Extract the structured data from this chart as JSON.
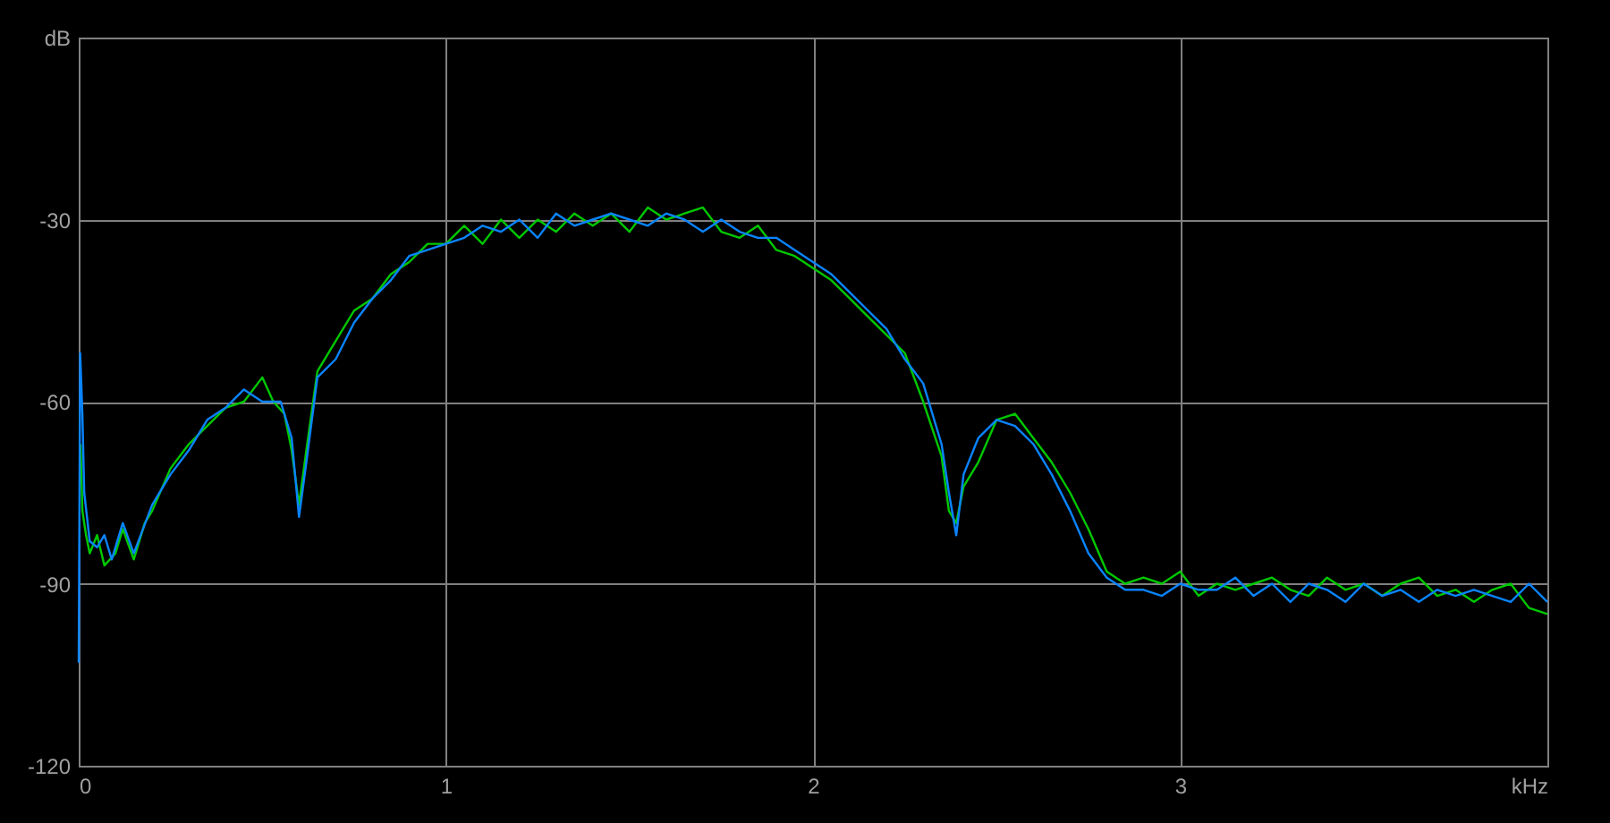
{
  "chart_data": {
    "type": "line",
    "xlim": [
      0,
      4
    ],
    "ylim": [
      -120,
      0
    ],
    "xticks": [
      0,
      1,
      2,
      3,
      {
        "value": 4,
        "label": "kHz"
      }
    ],
    "yticks": [
      {
        "value": 0,
        "label": "dB"
      },
      -30,
      -60,
      -90,
      -120
    ],
    "grid": true,
    "marker": "none",
    "line_style": "solid",
    "series": [
      {
        "color": "#00c800",
        "x": [
          0.005,
          0.01,
          0.02,
          0.03,
          0.05,
          0.07,
          0.1,
          0.12,
          0.15,
          0.18,
          0.2,
          0.25,
          0.3,
          0.35,
          0.4,
          0.45,
          0.5,
          0.53,
          0.56,
          0.58,
          0.6,
          0.62,
          0.65,
          0.7,
          0.75,
          0.8,
          0.85,
          0.9,
          0.95,
          1.0,
          1.05,
          1.1,
          1.15,
          1.2,
          1.25,
          1.3,
          1.35,
          1.4,
          1.45,
          1.5,
          1.55,
          1.6,
          1.65,
          1.7,
          1.75,
          1.8,
          1.85,
          1.9,
          1.95,
          2.0,
          2.05,
          2.1,
          2.15,
          2.2,
          2.25,
          2.3,
          2.35,
          2.37,
          2.39,
          2.41,
          2.45,
          2.5,
          2.55,
          2.6,
          2.65,
          2.7,
          2.75,
          2.8,
          2.85,
          2.9,
          2.95,
          3.0,
          3.05,
          3.1,
          3.15,
          3.2,
          3.25,
          3.3,
          3.35,
          3.4,
          3.45,
          3.5,
          3.55,
          3.6,
          3.65,
          3.7,
          3.75,
          3.8,
          3.85,
          3.9,
          3.95,
          4.0
        ],
        "values": [
          -67,
          -78,
          -82,
          -85,
          -82,
          -87,
          -85,
          -81,
          -86,
          -80,
          -78,
          -71,
          -67,
          -64,
          -61,
          -60,
          -56,
          -60,
          -62,
          -68,
          -77,
          -68,
          -55,
          -50,
          -45,
          -43,
          -39,
          -37,
          -34,
          -34,
          -31,
          -34,
          -30,
          -33,
          -30,
          -32,
          -29,
          -31,
          -29,
          -32,
          -28,
          -30,
          -29,
          -28,
          -32,
          -33,
          -31,
          -35,
          -36,
          -38,
          -40,
          -43,
          -46,
          -49,
          -52,
          -60,
          -69,
          -78,
          -80,
          -74,
          -70,
          -63,
          -62,
          -66,
          -70,
          -75,
          -81,
          -88,
          -90,
          -89,
          -90,
          -88,
          -92,
          -90,
          -91,
          -90,
          -89,
          -91,
          -92,
          -89,
          -91,
          -90,
          -92,
          -90,
          -89,
          -92,
          -91,
          -93,
          -91,
          -90,
          -94,
          -95
        ]
      },
      {
        "color": "#0a84ff",
        "x": [
          0.0,
          0.004,
          0.01,
          0.015,
          0.03,
          0.05,
          0.07,
          0.09,
          0.12,
          0.15,
          0.2,
          0.25,
          0.3,
          0.35,
          0.4,
          0.45,
          0.5,
          0.55,
          0.58,
          0.6,
          0.62,
          0.65,
          0.7,
          0.75,
          0.8,
          0.85,
          0.9,
          0.95,
          1.0,
          1.05,
          1.1,
          1.15,
          1.2,
          1.25,
          1.3,
          1.35,
          1.4,
          1.45,
          1.5,
          1.55,
          1.6,
          1.65,
          1.7,
          1.75,
          1.8,
          1.85,
          1.9,
          1.95,
          2.0,
          2.05,
          2.1,
          2.15,
          2.2,
          2.25,
          2.3,
          2.35,
          2.37,
          2.39,
          2.41,
          2.45,
          2.5,
          2.55,
          2.6,
          2.65,
          2.7,
          2.75,
          2.8,
          2.85,
          2.9,
          2.95,
          3.0,
          3.05,
          3.1,
          3.15,
          3.2,
          3.25,
          3.3,
          3.35,
          3.4,
          3.45,
          3.5,
          3.55,
          3.6,
          3.65,
          3.7,
          3.75,
          3.8,
          3.85,
          3.9,
          3.95,
          4.0
        ],
        "values": [
          -103,
          -52,
          -62,
          -75,
          -83,
          -84,
          -82,
          -86,
          -80,
          -85,
          -77,
          -72,
          -68,
          -63,
          -61,
          -58,
          -60,
          -60,
          -66,
          -79,
          -70,
          -56,
          -53,
          -47,
          -43,
          -40,
          -36,
          -35,
          -34,
          -33,
          -31,
          -32,
          -30,
          -33,
          -29,
          -31,
          -30,
          -29,
          -30,
          -31,
          -29,
          -30,
          -32,
          -30,
          -32,
          -33,
          -33,
          -35,
          -37,
          -39,
          -42,
          -45,
          -48,
          -53,
          -57,
          -67,
          -75,
          -82,
          -72,
          -66,
          -63,
          -64,
          -67,
          -72,
          -78,
          -85,
          -89,
          -91,
          -91,
          -92,
          -90,
          -91,
          -91,
          -89,
          -92,
          -90,
          -93,
          -90,
          -91,
          -93,
          -90,
          -92,
          -91,
          -93,
          -91,
          -92,
          -91,
          -92,
          -93,
          -90,
          -93
        ]
      }
    ]
  }
}
